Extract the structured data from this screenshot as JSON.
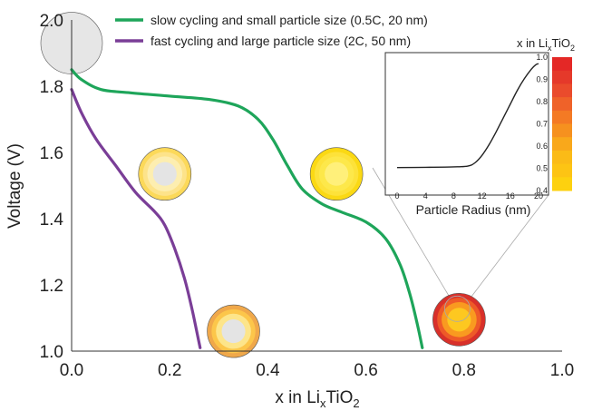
{
  "chart_data": [
    {
      "type": "line",
      "xlabel": "x in LixTiO2",
      "xlabel_parts": {
        "pre": "x in Li",
        "sub": "x",
        "mid": "TiO",
        "sub2": "2"
      },
      "ylabel": "Voltage (V)",
      "xlim": [
        0.0,
        1.0
      ],
      "ylim": [
        1.0,
        2.0
      ],
      "xticks": [
        "0.0",
        "0.2",
        "0.4",
        "0.6",
        "0.8",
        "1.0"
      ],
      "yticks": [
        "1.0",
        "1.2",
        "1.4",
        "1.6",
        "1.8",
        "2.0"
      ],
      "legend_position": "top-center",
      "series": [
        {
          "name": "slow cycling and small particle size (0.5C, 20 nm)",
          "color": "#1ea55a",
          "points": [
            [
              0.0,
              1.85
            ],
            [
              0.02,
              1.82
            ],
            [
              0.06,
              1.79
            ],
            [
              0.12,
              1.78
            ],
            [
              0.2,
              1.77
            ],
            [
              0.28,
              1.76
            ],
            [
              0.34,
              1.74
            ],
            [
              0.38,
              1.7
            ],
            [
              0.41,
              1.64
            ],
            [
              0.44,
              1.56
            ],
            [
              0.47,
              1.49
            ],
            [
              0.51,
              1.445
            ],
            [
              0.55,
              1.42
            ],
            [
              0.6,
              1.39
            ],
            [
              0.64,
              1.34
            ],
            [
              0.67,
              1.26
            ],
            [
              0.69,
              1.17
            ],
            [
              0.705,
              1.08
            ],
            [
              0.715,
              1.01
            ]
          ]
        },
        {
          "name": "fast cycling and large particle size (2C, 50 nm)",
          "color": "#7a3e97",
          "points": [
            [
              0.0,
              1.79
            ],
            [
              0.02,
              1.72
            ],
            [
              0.05,
              1.64
            ],
            [
              0.09,
              1.56
            ],
            [
              0.13,
              1.48
            ],
            [
              0.17,
              1.42
            ],
            [
              0.19,
              1.38
            ],
            [
              0.21,
              1.31
            ],
            [
              0.23,
              1.22
            ],
            [
              0.245,
              1.13
            ],
            [
              0.255,
              1.06
            ],
            [
              0.262,
              1.01
            ]
          ]
        }
      ],
      "particles": [
        {
          "name": "particle-initial",
          "x": 0.0,
          "y": 1.93,
          "core_color": "#e6e6e6",
          "ring_colors": [
            "#e6e6e6"
          ]
        },
        {
          "name": "particle-mid-fast",
          "x": 0.19,
          "y": 1.535,
          "core_color": "#e4e4e4",
          "ring_colors": [
            "#fcd95a",
            "#fde38a",
            "#fdeeb0"
          ]
        },
        {
          "name": "particle-mid-slow",
          "x": 0.54,
          "y": 1.535,
          "core_color": "#fff07a",
          "ring_colors": [
            "#fbd914",
            "#fde23a",
            "#fde84a"
          ]
        },
        {
          "name": "particle-end-fast",
          "x": 0.33,
          "y": 1.06,
          "core_color": "#e4e4e4",
          "ring_colors": [
            "#f0a84a",
            "#fcc64a",
            "#fde58a"
          ]
        },
        {
          "name": "particle-end-slow",
          "x": 0.79,
          "y": 1.095,
          "core_color": "#fdc820",
          "ring_colors": [
            "#d8302a",
            "#ee5a28",
            "#f99a20"
          ]
        }
      ]
    },
    {
      "type": "line",
      "name": "inset",
      "xlabel": "Particle Radius (nm)",
      "ylabel": "",
      "xlim": [
        0,
        20
      ],
      "ylim": [
        0.4,
        1.0
      ],
      "xticks": [
        "0",
        "4",
        "8",
        "12",
        "16",
        "20"
      ],
      "series": [
        {
          "color": "#222222",
          "points": [
            [
              0,
              0.478
            ],
            [
              4,
              0.479
            ],
            [
              8,
              0.481
            ],
            [
              10,
              0.485
            ],
            [
              11,
              0.5
            ],
            [
              12,
              0.535
            ],
            [
              13,
              0.585
            ],
            [
              14,
              0.645
            ],
            [
              15,
              0.71
            ],
            [
              16,
              0.775
            ],
            [
              17,
              0.84
            ],
            [
              18,
              0.895
            ],
            [
              19,
              0.94
            ],
            [
              19.6,
              0.96
            ],
            [
              20,
              0.965
            ]
          ]
        }
      ]
    }
  ],
  "colorbar": {
    "title": "x in LixTiO2",
    "title_parts": {
      "pre": "x in Li",
      "sub": "x",
      "mid": "TiO",
      "sub2": "2"
    },
    "ticks": [
      "1.0",
      "0.9",
      "0.8",
      "0.7",
      "0.6",
      "0.5",
      "0.4"
    ],
    "colors": [
      "#e42826",
      "#e5392a",
      "#ea4b2c",
      "#ef6229",
      "#f47a24",
      "#f6911f",
      "#f9a81b",
      "#fbbb17",
      "#fdc414",
      "#fdd10f"
    ]
  }
}
